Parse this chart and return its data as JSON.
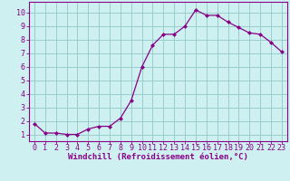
{
  "x": [
    0,
    1,
    2,
    3,
    4,
    5,
    6,
    7,
    8,
    9,
    10,
    11,
    12,
    13,
    14,
    15,
    16,
    17,
    18,
    19,
    20,
    21,
    22,
    23
  ],
  "y": [
    1.8,
    1.1,
    1.1,
    1.0,
    1.0,
    1.4,
    1.6,
    1.6,
    2.2,
    3.5,
    6.0,
    7.6,
    8.4,
    8.4,
    9.0,
    10.2,
    9.8,
    9.8,
    9.3,
    8.9,
    8.5,
    8.4,
    7.8,
    7.1
  ],
  "line_color": "#880088",
  "marker": "D",
  "marker_size": 2.5,
  "bg_color": "#cff0f0",
  "grid_color": "#99cccc",
  "xlabel": "Windchill (Refroidissement éolien,°C)",
  "xlabel_color": "#880088",
  "xlabel_fontsize": 6.5,
  "tick_color": "#880088",
  "tick_fontsize": 6.0,
  "ylim": [
    0.5,
    10.8
  ],
  "xlim": [
    -0.5,
    23.5
  ],
  "yticks": [
    1,
    2,
    3,
    4,
    5,
    6,
    7,
    8,
    9,
    10
  ],
  "xtick_labels": [
    "0",
    "1",
    "2",
    "3",
    "4",
    "5",
    "6",
    "7",
    "8",
    "9",
    "10",
    "11",
    "12",
    "13",
    "14",
    "15",
    "16",
    "17",
    "18",
    "19",
    "20",
    "21",
    "22",
    "23"
  ]
}
